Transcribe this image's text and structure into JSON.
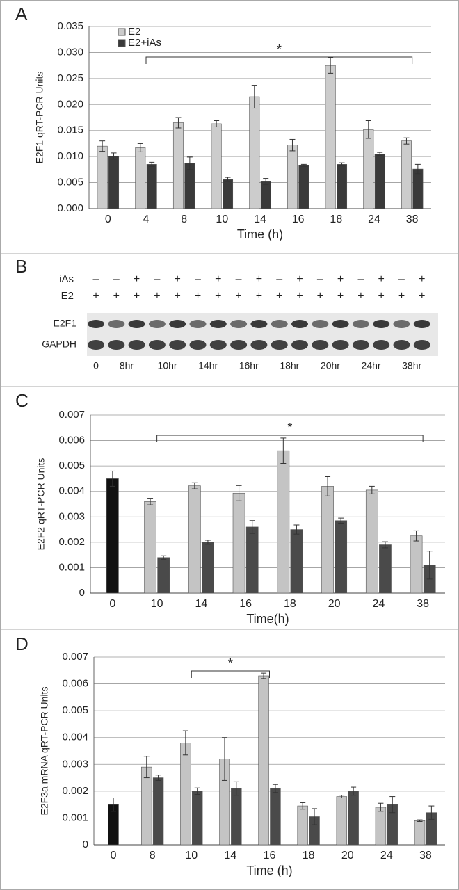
{
  "chart_data": [
    {
      "type": "bar",
      "panel": "A",
      "ylabel": "E2F1 qRT-PCR Units",
      "xlabel": "Time (h)",
      "annotation": "*",
      "categories": [
        "0",
        "4",
        "8",
        "10",
        "14",
        "16",
        "18",
        "24",
        "38"
      ],
      "series": [
        {
          "name": "E2",
          "color": "#cccccc",
          "values": [
            0.012,
            0.0117,
            0.0165,
            0.0163,
            0.0215,
            0.0122,
            0.0275,
            0.0152,
            0.013
          ],
          "errors": [
            0.001,
            0.0008,
            0.001,
            0.0006,
            0.0022,
            0.0011,
            0.0015,
            0.0017,
            0.0006
          ]
        },
        {
          "name": "E2+iAs",
          "color": "#3a3a3a",
          "values": [
            0.0101,
            0.0085,
            0.0087,
            0.0056,
            0.0052,
            0.0083,
            0.0085,
            0.0105,
            0.0076
          ],
          "errors": [
            0.0006,
            0.0004,
            0.0012,
            0.0004,
            0.0006,
            0.0002,
            0.0003,
            0.0003,
            0.0009
          ]
        }
      ],
      "ylim": [
        0,
        0.035
      ],
      "yticks": [
        {
          "value": 0,
          "label": "0.000"
        },
        0.005,
        {
          "value": 0.01,
          "label": "0.010"
        },
        0.015,
        {
          "value": 0.02,
          "label": "0.020"
        },
        0.025,
        {
          "value": 0.03,
          "label": "0.030"
        },
        0.035
      ],
      "grid": true
    },
    {
      "type": "bar",
      "panel": "C",
      "ylabel": "E2F2 qRT-PCR Units",
      "xlabel": "Time(h)",
      "annotation": "*",
      "categories": [
        "0",
        "10",
        "14",
        "16",
        "18",
        "20",
        "24",
        "38"
      ],
      "series": [
        {
          "color": "#111111",
          "values": [
            0.0045,
            null,
            null,
            null,
            null,
            null,
            null,
            null
          ],
          "errors": [
            0.0003,
            null,
            null,
            null,
            null,
            null,
            null,
            null
          ]
        },
        {
          "color": "#c4c4c4",
          "values": [
            null,
            0.0036,
            0.00422,
            0.00393,
            0.0056,
            0.0042,
            0.00405,
            0.00225
          ],
          "errors": [
            null,
            0.00013,
            0.00012,
            0.0003,
            0.0005,
            0.00038,
            0.00015,
            0.0002
          ]
        },
        {
          "color": "#4a4a4a",
          "values": [
            null,
            0.0014,
            0.002,
            0.0026,
            0.0025,
            0.00285,
            0.0019,
            0.0011
          ],
          "errors": [
            null,
            7e-05,
            8e-05,
            0.00025,
            0.00018,
            0.0001,
            0.00012,
            0.00055
          ]
        }
      ],
      "ylim": [
        0,
        0.007
      ],
      "yticks": [
        0,
        0.001,
        0.002,
        0.003,
        0.004,
        0.005,
        0.006,
        0.007
      ],
      "grid": true
    },
    {
      "type": "bar",
      "panel": "D",
      "ylabel": "E2F3a mRNA qRT-PCR Units",
      "xlabel": "Time (h)",
      "annotation": "*",
      "categories": [
        "0",
        "8",
        "10",
        "14",
        "16",
        "18",
        "20",
        "24",
        "38"
      ],
      "series": [
        {
          "color": "#111111",
          "values": [
            0.0015,
            null,
            null,
            null,
            null,
            null,
            null,
            null,
            null
          ],
          "errors": [
            0.00025,
            null,
            null,
            null,
            null,
            null,
            null,
            null,
            null
          ]
        },
        {
          "color": "#c4c4c4",
          "values": [
            null,
            0.0029,
            0.0038,
            0.0032,
            0.0063,
            0.00145,
            0.0018,
            0.0014,
            0.0009
          ],
          "errors": [
            null,
            0.0004,
            0.00045,
            0.0008,
            0.0001,
            0.00012,
            5e-05,
            0.00015,
            3e-05
          ]
        },
        {
          "color": "#4a4a4a",
          "values": [
            null,
            0.0025,
            0.002,
            0.0021,
            0.0021,
            0.00105,
            0.002,
            0.0015,
            0.0012
          ],
          "errors": [
            null,
            0.0001,
            0.00012,
            0.00025,
            0.00015,
            0.0003,
            0.00015,
            0.0003,
            0.00025
          ]
        }
      ],
      "ylim": [
        0,
        0.007
      ],
      "yticks": [
        0,
        0.001,
        0.002,
        0.003,
        0.004,
        0.005,
        0.006,
        0.007
      ],
      "grid": true
    }
  ],
  "blot": {
    "panel": "B",
    "rows": [
      {
        "label": "iAs",
        "signs": [
          "–",
          "–",
          "+",
          "–",
          "+",
          "–",
          "+",
          "–",
          "+",
          "–",
          "+",
          "–",
          "+",
          "–",
          "+",
          "–",
          "+"
        ]
      },
      {
        "label": "E2",
        "signs": [
          "+",
          "+",
          "+",
          "+",
          "+",
          "+",
          "+",
          "+",
          "+",
          "+",
          "+",
          "+",
          "+",
          "+",
          "+",
          "+",
          "+"
        ]
      }
    ],
    "bands": [
      "E2F1",
      "GAPDH"
    ],
    "lanes": [
      "0",
      "8hr",
      "10hr",
      "14hr",
      "16hr",
      "18hr",
      "20hr",
      "24hr",
      "38hr"
    ]
  }
}
